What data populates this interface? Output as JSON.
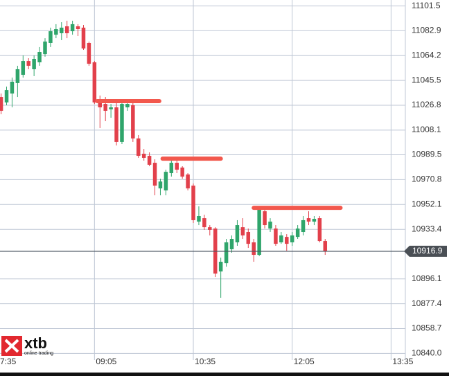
{
  "chart_data": {
    "type": "candlestick",
    "xlim": [
      459,
      828
    ],
    "ylim": [
      10835,
      11106
    ],
    "xticks": [
      {
        "value": 455,
        "label": "7:35"
      },
      {
        "value": 545,
        "label": "09:05"
      },
      {
        "value": 635,
        "label": "10:35"
      },
      {
        "value": 725,
        "label": "12:05"
      },
      {
        "value": 815,
        "label": "13:35"
      }
    ],
    "yticks": [
      {
        "value": 10840,
        "label": "10840.0"
      },
      10858.7,
      10877.4,
      10896.1,
      10933.4,
      10952.1,
      10970.8,
      10989.5,
      11008.1,
      11026.8,
      11045.5,
      11064.2,
      11082.9,
      11101.5
    ],
    "grid": true,
    "up_color": "#2fa56b",
    "down_color": "#e2404b",
    "x": [
      460,
      465,
      470,
      475,
      480,
      485,
      490,
      495,
      500,
      505,
      510,
      515,
      520,
      525,
      530,
      535,
      540,
      545,
      550,
      555,
      560,
      565,
      570,
      575,
      580,
      585,
      590,
      595,
      600,
      605,
      610,
      615,
      620,
      625,
      630,
      635,
      640,
      645,
      650,
      655,
      660,
      665,
      670,
      675,
      680,
      685,
      690,
      695,
      700,
      705,
      710,
      715,
      720,
      725,
      730,
      735,
      740,
      745,
      750,
      755
    ],
    "open": [
      11033.0,
      11028.9,
      11035.6,
      11043.5,
      11049.7,
      11060.1,
      11053.9,
      11059.1,
      11065.3,
      11073.7,
      11079.9,
      11081.0,
      11086.2,
      11082.5,
      11086.2,
      11085.2,
      11073.7,
      11059.1,
      11029.9,
      11027.8,
      11023.7,
      11025.2,
      10999.2,
      11025.2,
      11026.8,
      11001.8,
      10990.3,
      10988.7,
      10983.5,
      10964.2,
      10962.7,
      10975.7,
      10983.5,
      10979.9,
      10974.7,
      10966.3,
      10939.2,
      10941.8,
      10935.0,
      10934.0,
      10901.7,
      10907.9,
      10918.4,
      10923.6,
      10935.0,
      10931.4,
      10923.6,
      10914.2,
      10947.0,
      10934.0,
      10934.0,
      10923.6,
      10927.7,
      10923.6,
      10927.7,
      10931.4,
      10941.8,
      10939.2,
      10941.8,
      10924.6
    ],
    "high": [
      11035.6,
      11040.8,
      11047.6,
      11056.5,
      11064.3,
      11062.2,
      11064.3,
      11070.6,
      11077.3,
      11085.2,
      11087.8,
      11089.3,
      11090.4,
      11090.4,
      11087.8,
      11087.2,
      11074.7,
      11060.1,
      11034.1,
      11033.0,
      11027.8,
      11028.9,
      11028.9,
      11030.4,
      11028.9,
      11004.4,
      10993.9,
      10991.3,
      10986.1,
      10971.5,
      10978.3,
      10985.1,
      10985.1,
      10980.9,
      10975.7,
      10967.9,
      10950.7,
      10944.4,
      10936.6,
      10935.0,
      10912.1,
      10926.2,
      10928.8,
      10940.3,
      10941.8,
      10934.0,
      10926.2,
      10949.6,
      10948.6,
      10941.8,
      10936.6,
      10931.4,
      10929.8,
      10931.4,
      10936.6,
      10943.4,
      10947.0,
      10943.4,
      10943.4,
      10926.2
    ],
    "low": [
      11020.0,
      11026.8,
      11025.2,
      11033.0,
      11047.6,
      11053.9,
      11048.7,
      11056.5,
      11063.3,
      11070.6,
      11077.3,
      11075.8,
      11077.3,
      11079.9,
      11078.9,
      11068.5,
      11056.5,
      11027.8,
      11009.6,
      11014.8,
      11017.4,
      10996.5,
      10997.6,
      11022.6,
      10999.2,
      10987.2,
      10985.1,
      10980.9,
      10959.0,
      10959.0,
      10959.0,
      10973.1,
      10975.7,
      10971.5,
      10962.7,
      10938.2,
      10936.6,
      10933.0,
      10928.8,
      10897.5,
      10881.9,
      10905.3,
      10915.8,
      10921.0,
      10926.2,
      10919.4,
      10909.0,
      10913.2,
      10934.0,
      10931.4,
      10921.0,
      10922.5,
      10917.3,
      10921.0,
      10926.2,
      10928.8,
      10936.6,
      10936.6,
      10923.6,
      10914.2
    ],
    "close": [
      11022.6,
      11038.2,
      11044.5,
      11053.9,
      11060.1,
      11056.5,
      11061.7,
      11066.9,
      11074.7,
      11082.5,
      11084.1,
      11085.2,
      11081.0,
      11087.8,
      11084.1,
      11069.5,
      11058.0,
      11028.9,
      11025.2,
      11022.6,
      11025.2,
      10999.2,
      11027.8,
      11027.8,
      11001.8,
      10988.7,
      10987.2,
      10982.0,
      10966.3,
      10969.4,
      10976.7,
      10983.5,
      10978.3,
      10973.1,
      10964.2,
      10940.3,
      10943.4,
      10935.0,
      10933.0,
      10900.1,
      10909.0,
      10923.6,
      10926.2,
      10936.6,
      10928.8,
      10922.5,
      10914.2,
      10948.6,
      10936.6,
      10939.2,
      10922.5,
      10928.8,
      10922.5,
      10928.8,
      10934.0,
      10940.3,
      10939.2,
      10941.3,
      10924.6,
      10916.9
    ],
    "levels": [
      {
        "value": 11029.9,
        "x": [
          547.5,
          604
        ]
      },
      {
        "value": 10986.6,
        "x": [
          607,
          660
        ]
      },
      {
        "value": 10949.6,
        "x": [
          690,
          769
        ]
      }
    ],
    "level_color": "#f2584d",
    "last_price": 10916.9
  },
  "logo": {
    "name": "xtb",
    "tagline": "online trading"
  }
}
